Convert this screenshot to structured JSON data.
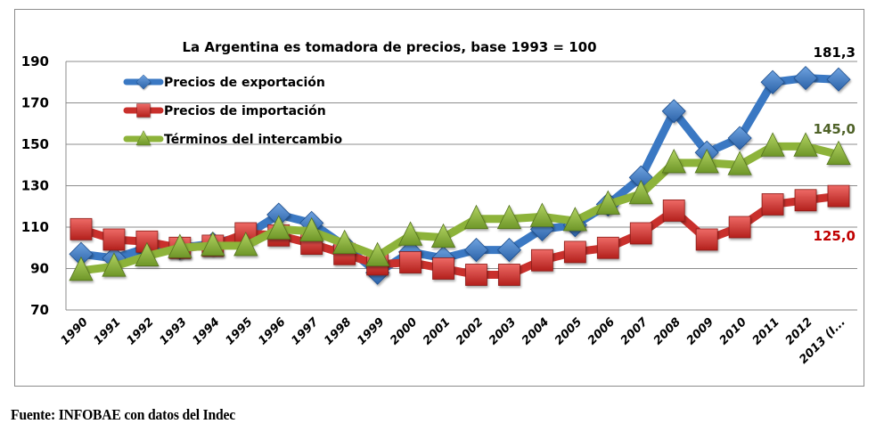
{
  "chart_data": {
    "type": "line",
    "title": "La Argentina es tomadora de precios, base 1993 = 100",
    "xlabel": "",
    "ylabel": "",
    "ylim": [
      70,
      190
    ],
    "yticks": [
      "190",
      "170",
      "150",
      "130",
      "110",
      "90",
      "70"
    ],
    "ytick_values": [
      190,
      170,
      150,
      130,
      110,
      90,
      70
    ],
    "grid": true,
    "legend_position": "top-left",
    "categories": [
      "1990",
      "1991",
      "1992",
      "1993",
      "1994",
      "1995",
      "1996",
      "1997",
      "1998",
      "1999",
      "2000",
      "2001",
      "2002",
      "2003",
      "2004",
      "2005",
      "2006",
      "2007",
      "2008",
      "2009",
      "2010",
      "2011",
      "2012",
      "2013 (I..."
    ],
    "series": [
      {
        "name": "Precios de exportación",
        "color": "#3a78c3",
        "marker": "diamond",
        "values": [
          97,
          95,
          100,
          100,
          102,
          106,
          116,
          112,
          101,
          88,
          98,
          95,
          99,
          99,
          109,
          111,
          121,
          134,
          166,
          146,
          153,
          180,
          182,
          181.3
        ]
      },
      {
        "name": "Precios de importación",
        "color": "#c9302c",
        "marker": "square",
        "values": [
          109,
          104,
          103,
          100,
          101,
          107,
          106,
          102,
          97,
          92,
          93,
          90,
          87,
          87,
          94,
          98,
          100,
          107,
          118,
          104,
          110,
          121,
          123,
          125.0
        ]
      },
      {
        "name": "Términos del intercambio",
        "color": "#8db33a",
        "marker": "triangle",
        "values": [
          89,
          91,
          96,
          100,
          101,
          101,
          109,
          108,
          102,
          96,
          106,
          105,
          114,
          114,
          115,
          113,
          121,
          126,
          141,
          141,
          140,
          149,
          149,
          145.0
        ]
      }
    ],
    "annotations": [
      {
        "text": "181,3",
        "series": "Precios de exportación",
        "color": "#000000"
      },
      {
        "text": "145,0",
        "series": "Términos del intercambio",
        "color": "#4f6228"
      },
      {
        "text": "125,0",
        "series": "Precios de importación",
        "color": "#c00000"
      }
    ]
  },
  "footer": {
    "source": "Fuente: INFOBAE con datos del Indec"
  }
}
